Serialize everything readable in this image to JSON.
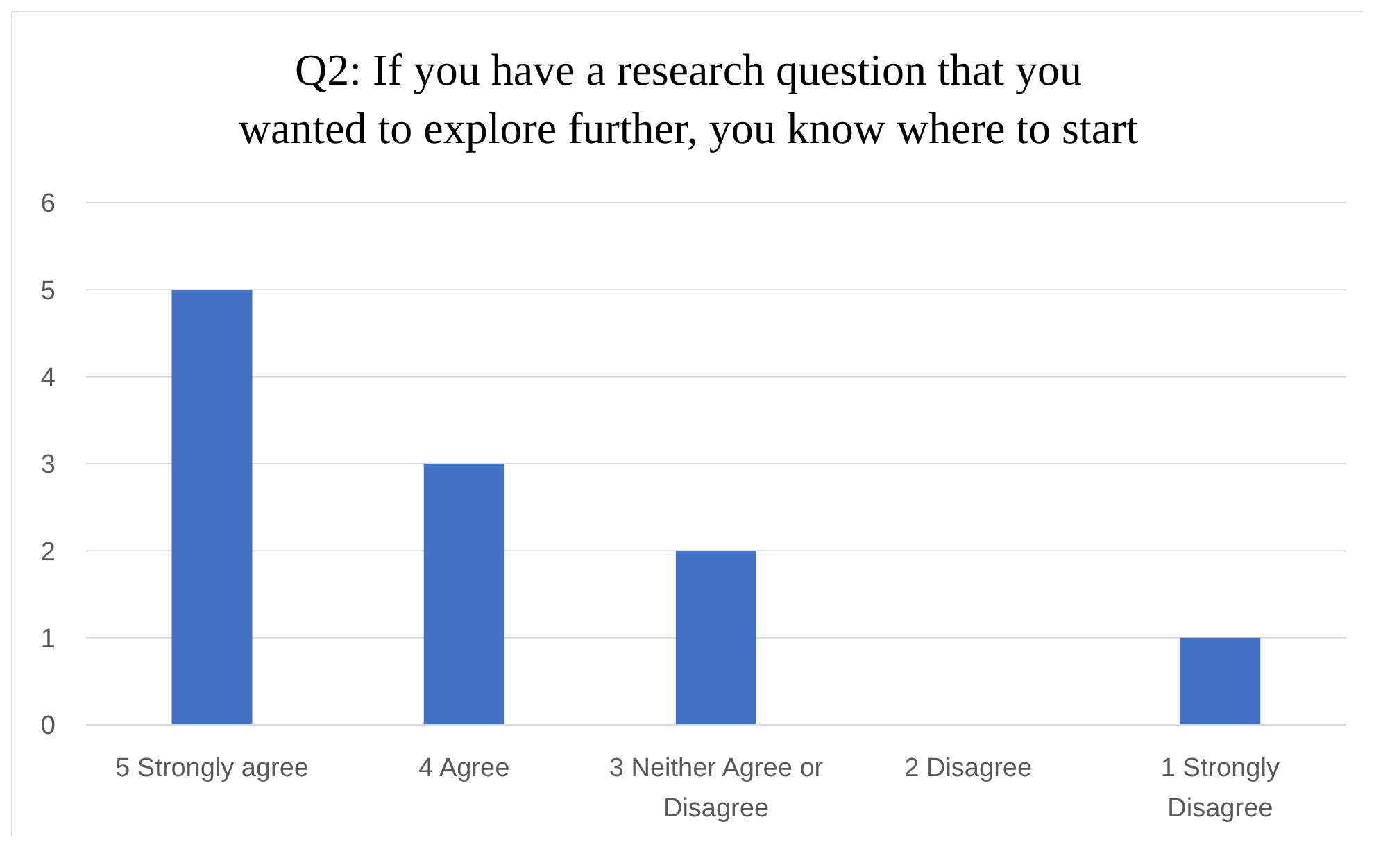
{
  "chart_data": {
    "type": "bar",
    "title": "Q2: If you have a research question that you wanted to explore further, you know where to start",
    "categories": [
      "5 Strongly agree",
      "4 Agree",
      "3 Neither Agree or Disagree",
      "2 Disagree",
      "1 Strongly Disagree"
    ],
    "values": [
      5,
      3,
      2,
      0,
      1
    ],
    "color": "#4472c4",
    "ylim": [
      0,
      6
    ],
    "yticks": [
      0,
      1,
      2,
      3,
      4,
      5,
      6
    ],
    "grid": "y"
  }
}
